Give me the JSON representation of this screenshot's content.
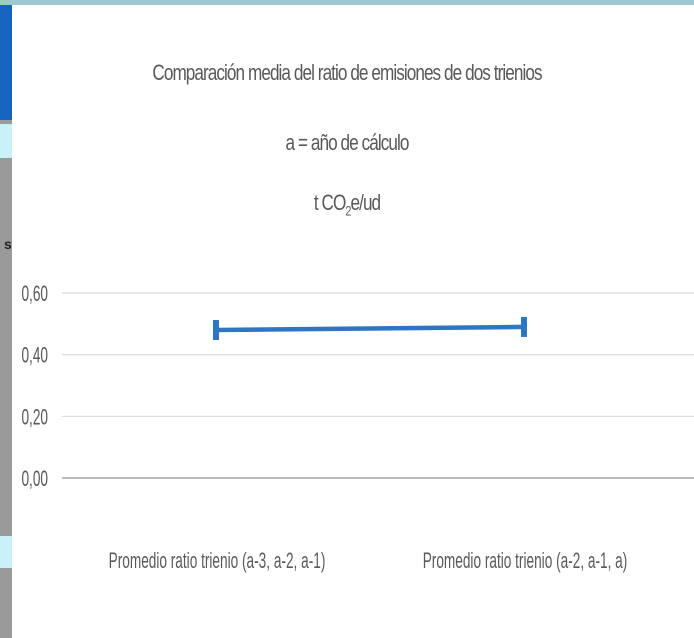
{
  "chart_data": {
    "type": "line",
    "title": "Comparación media del ratio de emisiones de dos trienios",
    "subtitle": "a = año de cálculo",
    "unit_base": "t CO",
    "unit_sub": "2",
    "unit_rest": "e/ud",
    "categories": [
      "Promedio ratio trienio (a-3, a-2, a-1)",
      "Promedio ratio trienio (a-2, a-1, a)"
    ],
    "series": [
      {
        "values": [
          0.48,
          0.49
        ]
      }
    ],
    "ylim": [
      0,
      0.6
    ],
    "yticks": [
      "0,60",
      "0,40",
      "0,20",
      "0,00"
    ],
    "ytick_values": [
      0.6,
      0.4,
      0.2,
      0
    ],
    "grid": true,
    "series_color": "#2e75c4",
    "grid_color": "#d9d9d9",
    "text_color": "#595959"
  },
  "background": {
    "edge_glyph": "s"
  }
}
